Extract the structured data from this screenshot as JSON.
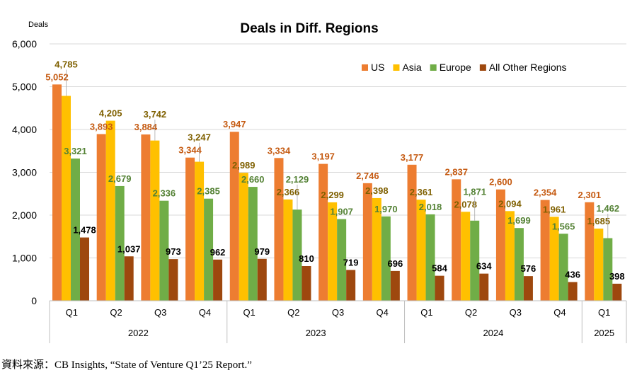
{
  "chart_data": {
    "type": "bar",
    "title": "Deals in Diff. Regions",
    "ylabel": "Deals",
    "xlabel": "",
    "ylim": [
      0,
      6000
    ],
    "yticks": [
      0,
      1000,
      2000,
      3000,
      4000,
      5000,
      6000
    ],
    "ytick_labels": [
      "0",
      "1,000",
      "2,000",
      "3,000",
      "4,000",
      "5,000",
      "6,000"
    ],
    "grid": true,
    "legend_position": "top-right",
    "categories": [
      "Q1",
      "Q2",
      "Q3",
      "Q4",
      "Q1",
      "Q2",
      "Q3",
      "Q4",
      "Q1",
      "Q2",
      "Q3",
      "Q4",
      "Q1"
    ],
    "year_groups": [
      {
        "label": "2022",
        "count": 4
      },
      {
        "label": "2023",
        "count": 4
      },
      {
        "label": "2024",
        "count": 4
      },
      {
        "label": "2025",
        "count": 1
      }
    ],
    "series": [
      {
        "name": "US",
        "color": "#ED7D31",
        "label_color": "#C55A11",
        "values": [
          5052,
          3893,
          3884,
          3344,
          3947,
          3334,
          3197,
          2746,
          3177,
          2837,
          2600,
          2354,
          2301
        ]
      },
      {
        "name": "Asia",
        "color": "#FFC000",
        "label_color": "#7F6000",
        "values": [
          4785,
          4205,
          3742,
          3247,
          2989,
          2366,
          2299,
          2398,
          2361,
          2078,
          2094,
          1961,
          1685
        ]
      },
      {
        "name": "Europe",
        "color": "#70AD47",
        "label_color": "#548235",
        "values": [
          3321,
          2679,
          2336,
          2385,
          2660,
          2129,
          1907,
          1970,
          2018,
          1871,
          1699,
          1565,
          1462
        ]
      },
      {
        "name": "All Other Regions",
        "color": "#9E480E",
        "label_color": "#000000",
        "values": [
          1478,
          1037,
          973,
          962,
          979,
          810,
          719,
          696,
          584,
          634,
          576,
          436,
          398
        ]
      }
    ]
  },
  "source": "資料來源：CB Insights, “State of Venture Q1’25 Report.”"
}
